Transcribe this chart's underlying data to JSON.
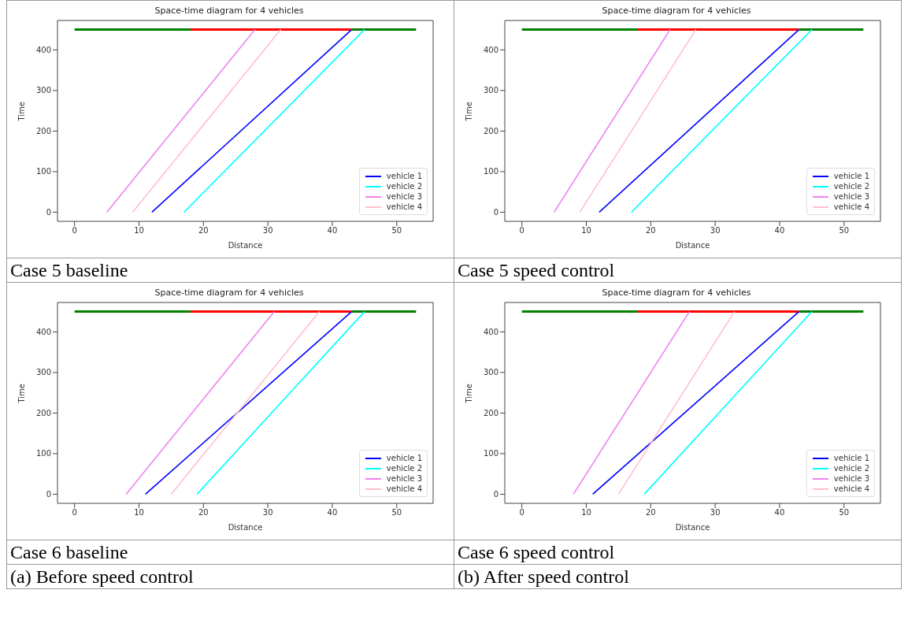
{
  "chart_data": [
    {
      "type": "line",
      "title": "Space-time diagram for 4 vehicles",
      "xlabel": "Distance",
      "ylabel": "Time",
      "xlim": [
        -2.65,
        55.65
      ],
      "ylim": [
        -22.5,
        472.5
      ],
      "xticks": [
        0,
        10,
        20,
        30,
        40,
        50
      ],
      "yticks": [
        0,
        100,
        200,
        300,
        400
      ],
      "legend": "bottom right",
      "annotations": [
        "Case 5 baseline"
      ],
      "series": [
        {
          "color": "#008000",
          "x": [
            0,
            18
          ],
          "values": [
            450,
            450
          ]
        },
        {
          "color": "#ff0000",
          "x": [
            18,
            43
          ],
          "values": [
            450,
            450
          ]
        },
        {
          "color": "#008000",
          "x": [
            43,
            53
          ],
          "values": [
            450,
            450
          ]
        },
        {
          "name": "vehicle 1",
          "color": "#0000ff",
          "x": [
            12,
            43
          ],
          "values": [
            0,
            450
          ]
        },
        {
          "name": "vehicle 2",
          "color": "#00ffff",
          "x": [
            17,
            45
          ],
          "values": [
            0,
            450
          ]
        },
        {
          "name": "vehicle 3",
          "color": "#ee82ee",
          "x": [
            5,
            28
          ],
          "values": [
            0,
            450
          ]
        },
        {
          "name": "vehicle 4",
          "color": "#ffc0cb",
          "x": [
            9,
            32
          ],
          "values": [
            0,
            450
          ]
        }
      ]
    },
    {
      "type": "line",
      "title": "Space-time diagram for 4 vehicles",
      "xlabel": "Distance",
      "ylabel": "Time",
      "xlim": [
        -2.65,
        55.65
      ],
      "ylim": [
        -22.5,
        472.5
      ],
      "xticks": [
        0,
        10,
        20,
        30,
        40,
        50
      ],
      "yticks": [
        0,
        100,
        200,
        300,
        400
      ],
      "legend": "bottom right",
      "annotations": [
        "Case 5 speed control"
      ],
      "series": [
        {
          "color": "#008000",
          "x": [
            0,
            18
          ],
          "values": [
            450,
            450
          ]
        },
        {
          "color": "#ff0000",
          "x": [
            18,
            43
          ],
          "values": [
            450,
            450
          ]
        },
        {
          "color": "#008000",
          "x": [
            43,
            53
          ],
          "values": [
            450,
            450
          ]
        },
        {
          "name": "vehicle 1",
          "color": "#0000ff",
          "x": [
            12,
            43
          ],
          "values": [
            0,
            450
          ]
        },
        {
          "name": "vehicle 2",
          "color": "#00ffff",
          "x": [
            17,
            45
          ],
          "values": [
            0,
            450
          ]
        },
        {
          "name": "vehicle 3",
          "color": "#ee82ee",
          "x": [
            5,
            23
          ],
          "values": [
            0,
            450
          ]
        },
        {
          "name": "vehicle 4",
          "color": "#ffc0cb",
          "x": [
            9,
            27
          ],
          "values": [
            0,
            450
          ]
        }
      ]
    },
    {
      "type": "line",
      "title": "Space-time diagram for 4 vehicles",
      "xlabel": "Distance",
      "ylabel": "Time",
      "xlim": [
        -2.65,
        55.65
      ],
      "ylim": [
        -22.5,
        472.5
      ],
      "xticks": [
        0,
        10,
        20,
        30,
        40,
        50
      ],
      "yticks": [
        0,
        100,
        200,
        300,
        400
      ],
      "legend": "bottom right",
      "annotations": [
        "Case 6 baseline",
        "(a) Before speed control"
      ],
      "series": [
        {
          "color": "#008000",
          "x": [
            0,
            18
          ],
          "values": [
            450,
            450
          ]
        },
        {
          "color": "#ff0000",
          "x": [
            18,
            43
          ],
          "values": [
            450,
            450
          ]
        },
        {
          "color": "#008000",
          "x": [
            43,
            53
          ],
          "values": [
            450,
            450
          ]
        },
        {
          "name": "vehicle 1",
          "color": "#0000ff",
          "x": [
            11,
            43
          ],
          "values": [
            0,
            450
          ]
        },
        {
          "name": "vehicle 2",
          "color": "#00ffff",
          "x": [
            19,
            45
          ],
          "values": [
            0,
            450
          ]
        },
        {
          "name": "vehicle 3",
          "color": "#ee82ee",
          "x": [
            8,
            31
          ],
          "values": [
            0,
            450
          ]
        },
        {
          "name": "vehicle 4",
          "color": "#ffc0cb",
          "x": [
            15,
            38
          ],
          "values": [
            0,
            450
          ]
        }
      ]
    },
    {
      "type": "line",
      "title": "Space-time diagram for 4 vehicles",
      "xlabel": "Distance",
      "ylabel": "Time",
      "xlim": [
        -2.65,
        55.65
      ],
      "ylim": [
        -22.5,
        472.5
      ],
      "xticks": [
        0,
        10,
        20,
        30,
        40,
        50
      ],
      "yticks": [
        0,
        100,
        200,
        300,
        400
      ],
      "legend": "bottom right",
      "annotations": [
        "Case 6 speed control",
        "(b) After speed control"
      ],
      "series": [
        {
          "color": "#008000",
          "x": [
            0,
            18
          ],
          "values": [
            450,
            450
          ]
        },
        {
          "color": "#ff0000",
          "x": [
            18,
            43
          ],
          "values": [
            450,
            450
          ]
        },
        {
          "color": "#008000",
          "x": [
            43,
            53
          ],
          "values": [
            450,
            450
          ]
        },
        {
          "name": "vehicle 1",
          "color": "#0000ff",
          "x": [
            11,
            43
          ],
          "values": [
            0,
            450
          ]
        },
        {
          "name": "vehicle 2",
          "color": "#00ffff",
          "x": [
            19,
            45
          ],
          "values": [
            0,
            450
          ]
        },
        {
          "name": "vehicle 3",
          "color": "#ee82ee",
          "x": [
            8,
            26
          ],
          "values": [
            0,
            450
          ]
        },
        {
          "name": "vehicle 4",
          "color": "#ffc0cb",
          "x": [
            15,
            33
          ],
          "values": [
            0,
            450
          ]
        }
      ]
    }
  ]
}
